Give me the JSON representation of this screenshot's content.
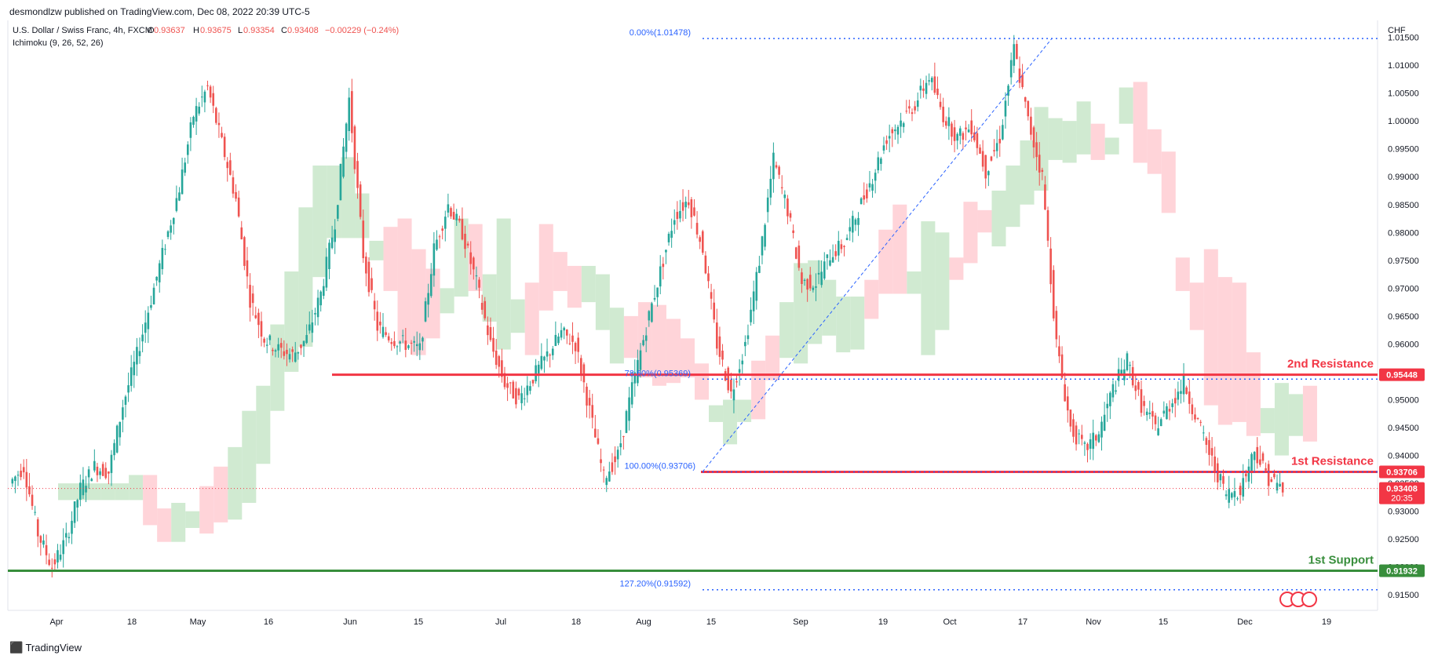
{
  "header": {
    "attribution": "desmondlzw published on TradingView.com, Dec 08, 2022 20:39 UTC-5"
  },
  "legend": {
    "symbol": "U.S. Dollar / Swiss Franc, 4h, FXCM",
    "ohlc": {
      "o_label": "O",
      "o": "0.93637",
      "h_label": "H",
      "h": "0.93675",
      "l_label": "L",
      "l": "0.93354",
      "c_label": "C",
      "c": "0.93408",
      "chg": "−0.00229 (−0.24%)"
    },
    "indicator": "Ichimoku (9, 26, 52, 26)"
  },
  "footer": {
    "brand": "TradingView"
  },
  "colors": {
    "up": "#26a69a",
    "down": "#ef5350",
    "resistance": "#f23645",
    "support": "#388e3c",
    "fib": "#2962ff",
    "cloud_bull": "#c8e6c9",
    "cloud_bear": "#ffcdd2"
  },
  "chart_data": {
    "type": "candlestick",
    "symbol": "USDCHF",
    "timeframe": "4h",
    "currency": "CHF",
    "ylim": [
      0.9125,
      1.0155
    ],
    "x_ticks": [
      "Apr",
      "18",
      "May",
      "16",
      "Jun",
      "15",
      "Jul",
      "18",
      "Aug",
      "15",
      "Sep",
      "19",
      "Oct",
      "17",
      "Nov",
      "15",
      "Dec",
      "19"
    ],
    "y_ticks": [
      "1.01500",
      "1.01000",
      "1.00500",
      "1.00000",
      "0.99500",
      "0.99000",
      "0.98500",
      "0.98000",
      "0.97500",
      "0.97000",
      "0.96500",
      "0.96000",
      "0.95500",
      "0.95000",
      "0.94500",
      "0.94000",
      "0.93500",
      "0.93000",
      "0.92500",
      "0.92000",
      "0.91500"
    ],
    "y_tick_values": [
      1.015,
      1.01,
      1.005,
      1.0,
      0.995,
      0.99,
      0.985,
      0.98,
      0.975,
      0.97,
      0.965,
      0.96,
      0.955,
      0.95,
      0.945,
      0.94,
      0.935,
      0.93,
      0.925,
      0.92,
      0.915
    ],
    "price_path": [
      [
        0.935,
        0.938,
        0.926,
        0.92,
        0.925,
        0.934,
        0.938,
        0.937,
        0.949,
        0.958,
        0.968,
        0.978,
        0.988,
        1.001,
        1.006,
        0.996,
        0.986,
        0.968,
        0.961,
        0.959,
        0.958,
        0.961,
        0.969,
        0.982,
        1.004,
        0.976,
        0.963,
        0.961,
        0.96,
        0.959,
        0.977,
        0.985,
        0.98,
        0.971,
        0.96,
        0.953,
        0.95,
        0.954,
        0.958,
        0.962,
        0.96,
        0.948,
        0.936,
        0.94,
        0.952,
        0.963,
        0.973,
        0.983,
        0.986,
        0.977,
        0.96,
        0.951,
        0.96,
        0.975,
        0.993,
        0.984,
        0.971,
        0.971,
        0.976,
        0.978,
        0.984,
        0.99,
        0.997,
        1.0,
        1.003,
        1.008,
        1.001,
        0.997,
        0.999,
        0.991,
        0.997,
        1.013,
        1.0,
        0.99,
        0.96,
        0.945,
        0.941,
        0.944,
        0.952,
        0.957,
        0.949,
        0.945,
        0.949,
        0.953,
        0.946,
        0.939,
        0.933,
        0.934,
        0.941,
        0.936,
        0.934
      ],
      "reduced polyline of the 4h closes from Apr to Dec 08"
    ],
    "last_price": "0.93408",
    "last_price_timer": "20:35",
    "levels": [
      {
        "name": "2nd Resistance",
        "price": "0.95448",
        "value": 0.95448,
        "color": "#f23645"
      },
      {
        "name": "1st Resistance",
        "price": "0.93706",
        "value": 0.93706,
        "color": "#f23645"
      },
      {
        "name": "1st Support",
        "price": "0.91932",
        "value": 0.91932,
        "color": "#388e3c"
      }
    ],
    "fibonacci": [
      {
        "label": "0.00%(1.01478)",
        "value": 1.01478
      },
      {
        "label": "78.60%(0.95369)",
        "value": 0.95369
      },
      {
        "label": "100.00%(0.93706)",
        "value": 0.93706
      },
      {
        "label": "127.20%(0.91592)",
        "value": 0.91592
      }
    ]
  }
}
